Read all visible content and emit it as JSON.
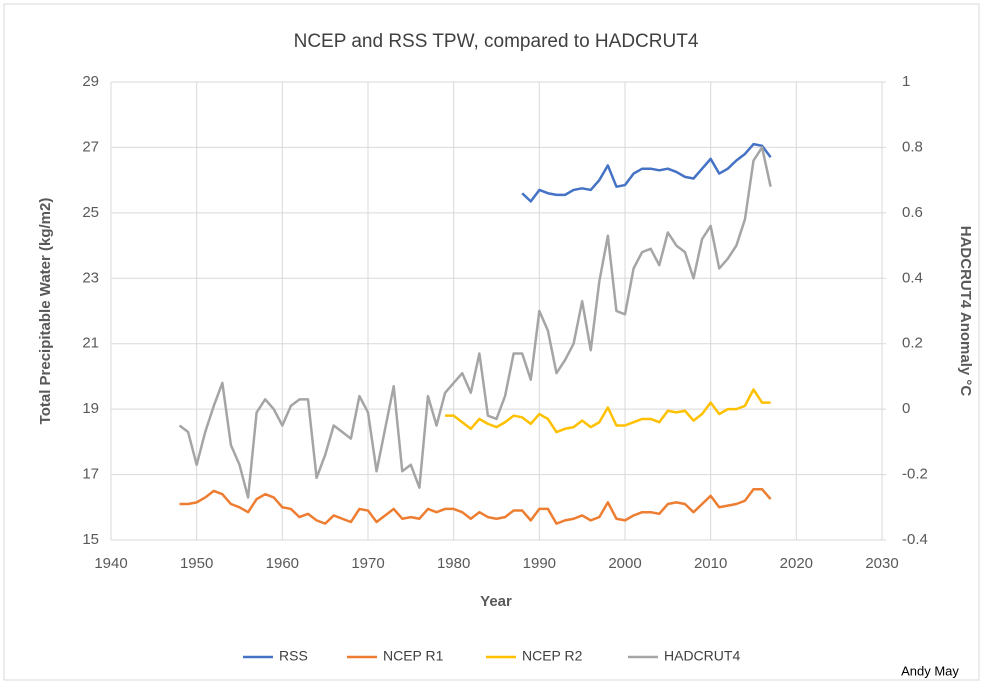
{
  "chart_data": {
    "type": "line",
    "title": "NCEP and RSS TPW, compared to HADCRUT4",
    "xlabel": "Year",
    "ylabel": "Total Precipitable Water (kg/m2)",
    "y2label": "HADCRUT4 Anomaly °C",
    "annotation": "Andy May",
    "xlim": [
      1940,
      2030
    ],
    "xticks": [
      1940,
      1950,
      1960,
      1970,
      1980,
      1990,
      2000,
      2010,
      2020,
      2030
    ],
    "ylim": [
      15,
      29
    ],
    "yticks": [
      15,
      17,
      19,
      21,
      23,
      25,
      27,
      29
    ],
    "y2lim": [
      -0.4,
      1
    ],
    "y2ticks": [
      -0.4,
      -0.2,
      0,
      0.2,
      0.4,
      0.6,
      0.8,
      1
    ],
    "grid": true,
    "legend": "bottom",
    "x": [
      1948,
      1949,
      1950,
      1951,
      1952,
      1953,
      1954,
      1955,
      1956,
      1957,
      1958,
      1959,
      1960,
      1961,
      1962,
      1963,
      1964,
      1965,
      1966,
      1967,
      1968,
      1969,
      1970,
      1971,
      1972,
      1973,
      1974,
      1975,
      1976,
      1977,
      1978,
      1979,
      1980,
      1981,
      1982,
      1983,
      1984,
      1985,
      1986,
      1987,
      1988,
      1989,
      1990,
      1991,
      1992,
      1993,
      1994,
      1995,
      1996,
      1997,
      1998,
      1999,
      2000,
      2001,
      2002,
      2003,
      2004,
      2005,
      2006,
      2007,
      2008,
      2009,
      2010,
      2011,
      2012,
      2013,
      2014,
      2015,
      2016,
      2017
    ],
    "series": [
      {
        "name": "RSS",
        "color": "#4472c4",
        "values": [
          null,
          null,
          null,
          null,
          null,
          null,
          null,
          null,
          null,
          null,
          null,
          null,
          null,
          null,
          null,
          null,
          null,
          null,
          null,
          null,
          null,
          null,
          null,
          null,
          null,
          null,
          null,
          null,
          null,
          null,
          null,
          null,
          null,
          null,
          null,
          null,
          null,
          null,
          null,
          null,
          25.6,
          25.35,
          25.7,
          25.6,
          25.55,
          25.55,
          25.7,
          25.75,
          25.7,
          26.0,
          26.45,
          25.8,
          25.85,
          26.2,
          26.35,
          26.35,
          26.3,
          26.35,
          26.25,
          26.1,
          26.05,
          26.35,
          26.65,
          26.2,
          26.35,
          26.6,
          26.8,
          27.1,
          27.05,
          26.7
        ]
      },
      {
        "name": "NCEP R1",
        "color": "#ed7d31",
        "values": [
          16.1,
          16.1,
          16.15,
          16.3,
          16.5,
          16.4,
          16.1,
          16.0,
          15.85,
          16.25,
          16.4,
          16.3,
          16.0,
          15.95,
          15.7,
          15.8,
          15.6,
          15.5,
          15.75,
          15.65,
          15.55,
          15.95,
          15.9,
          15.55,
          15.75,
          15.95,
          15.65,
          15.7,
          15.65,
          15.95,
          15.85,
          15.95,
          15.95,
          15.85,
          15.65,
          15.85,
          15.7,
          15.65,
          15.7,
          15.9,
          15.9,
          15.6,
          15.95,
          15.95,
          15.5,
          15.6,
          15.65,
          15.75,
          15.6,
          15.7,
          16.15,
          15.65,
          15.6,
          15.75,
          15.85,
          15.85,
          15.8,
          16.1,
          16.15,
          16.1,
          15.85,
          16.1,
          16.35,
          16.0,
          16.05,
          16.1,
          16.2,
          16.55,
          16.55,
          16.25
        ]
      },
      {
        "name": "NCEP R2",
        "color": "#ffc000",
        "values": [
          null,
          null,
          null,
          null,
          null,
          null,
          null,
          null,
          null,
          null,
          null,
          null,
          null,
          null,
          null,
          null,
          null,
          null,
          null,
          null,
          null,
          null,
          null,
          null,
          null,
          null,
          null,
          null,
          null,
          null,
          null,
          18.8,
          18.8,
          18.6,
          18.4,
          18.7,
          18.55,
          18.45,
          18.6,
          18.8,
          18.75,
          18.55,
          18.85,
          18.7,
          18.3,
          18.4,
          18.45,
          18.65,
          18.45,
          18.6,
          19.05,
          18.5,
          18.5,
          18.6,
          18.7,
          18.7,
          18.6,
          18.95,
          18.9,
          18.95,
          18.65,
          18.85,
          19.2,
          18.85,
          19.0,
          19.0,
          19.1,
          19.6,
          19.2,
          19.2
        ]
      },
      {
        "name": "HADCRUT4",
        "color": "#a5a5a5",
        "axis": "y2",
        "values": [
          -0.05,
          -0.07,
          -0.17,
          -0.07,
          0.01,
          0.08,
          -0.11,
          -0.17,
          -0.27,
          -0.01,
          0.03,
          0.0,
          -0.05,
          0.01,
          0.03,
          0.03,
          -0.21,
          -0.14,
          -0.05,
          -0.07,
          -0.09,
          0.04,
          -0.01,
          -0.19,
          -0.06,
          0.07,
          -0.19,
          -0.17,
          -0.24,
          0.04,
          -0.05,
          0.05,
          0.08,
          0.11,
          0.05,
          0.17,
          -0.02,
          -0.03,
          0.04,
          0.17,
          0.17,
          0.09,
          0.3,
          0.24,
          0.11,
          0.15,
          0.2,
          0.33,
          0.18,
          0.39,
          0.53,
          0.3,
          0.29,
          0.43,
          0.48,
          0.49,
          0.44,
          0.54,
          0.5,
          0.48,
          0.4,
          0.52,
          0.56,
          0.43,
          0.46,
          0.5,
          0.58,
          0.76,
          0.8,
          0.68
        ]
      }
    ]
  }
}
